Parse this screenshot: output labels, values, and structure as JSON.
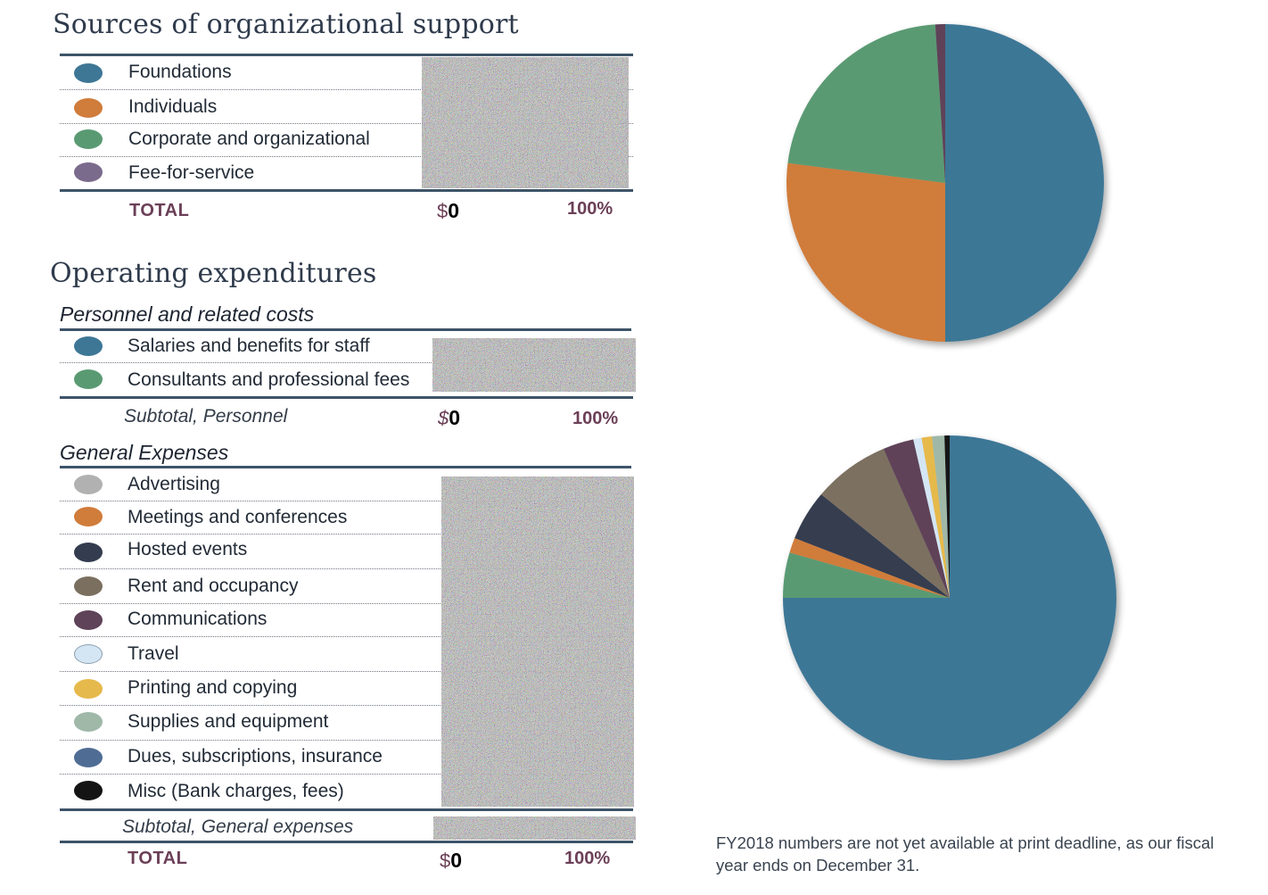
{
  "support": {
    "title": "Sources of organizational support",
    "items": [
      {
        "label": "Foundations",
        "color": "#3e7796"
      },
      {
        "label": "Individuals",
        "color": "#d07c3b"
      },
      {
        "label": "Corporate and organizational",
        "color": "#5a9a73"
      },
      {
        "label": "Fee-for-service",
        "color": "#7a6a8c"
      }
    ],
    "total_label": "TOTAL",
    "total_currency": "$",
    "total_amount": "0",
    "total_pct": "100%"
  },
  "expenditures": {
    "title": "Operating expenditures",
    "personnel": {
      "heading": "Personnel and related costs",
      "items": [
        {
          "label": "Salaries and benefits for staff",
          "color": "#3e7796"
        },
        {
          "label": "Consultants and professional fees",
          "color": "#5a9a73"
        }
      ],
      "subtotal_label": "Subtotal, Personnel",
      "subtotal_currency": "$",
      "subtotal_amount": "0",
      "subtotal_pct": "100%"
    },
    "general": {
      "heading": "General Expenses",
      "items": [
        {
          "label": "Advertising",
          "color": "#b1b1b1"
        },
        {
          "label": "Meetings and conferences",
          "color": "#d07c3b"
        },
        {
          "label": "Hosted events",
          "color": "#343d4f"
        },
        {
          "label": "Rent and occupancy",
          "color": "#7b6f60"
        },
        {
          "label": "Communications",
          "color": "#5f4359"
        },
        {
          "label": "Travel",
          "color": "#d4e6f4"
        },
        {
          "label": "Printing and copying",
          "color": "#e6b94c"
        },
        {
          "label": "Supplies and equipment",
          "color": "#9fb8a8"
        },
        {
          "label": "Dues, subscriptions, insurance",
          "color": "#4f6d94"
        },
        {
          "label": "Misc (Bank charges, fees)",
          "color": "#141414"
        }
      ],
      "subtotal_label": "Subtotal, General expenses"
    },
    "total_label": "TOTAL",
    "total_currency": "$",
    "total_amount": "0",
    "total_pct": "100%"
  },
  "note": "FY2018 numbers are not yet available at print deadline, as our fiscal year ends on December 31.",
  "chart_data": [
    {
      "type": "pie",
      "categories": [
        "Foundations",
        "Individuals",
        "Corporate and organizational",
        "Fee-for-service"
      ],
      "values": [
        50,
        27,
        22,
        1
      ],
      "colors": [
        "#3e7796",
        "#d07c3b",
        "#5a9a73",
        "#5f4359"
      ]
    },
    {
      "type": "pie",
      "categories": [
        "Salaries and benefits for staff",
        "Consultants and professional fees",
        "Meetings and conferences",
        "Hosted events",
        "Rent and occupancy",
        "Communications",
        "Travel",
        "Printing and copying",
        "Supplies and equipment",
        "Misc (Bank charges, fees)"
      ],
      "values": [
        75,
        4.5,
        1.5,
        5,
        7.5,
        3,
        0.8,
        1,
        1.2,
        0.5
      ],
      "colors": [
        "#3e7796",
        "#5a9a73",
        "#d07c3b",
        "#343d4f",
        "#7b6f60",
        "#5f4359",
        "#d4e6f4",
        "#e6b94c",
        "#9fb8a8",
        "#141414"
      ]
    }
  ]
}
